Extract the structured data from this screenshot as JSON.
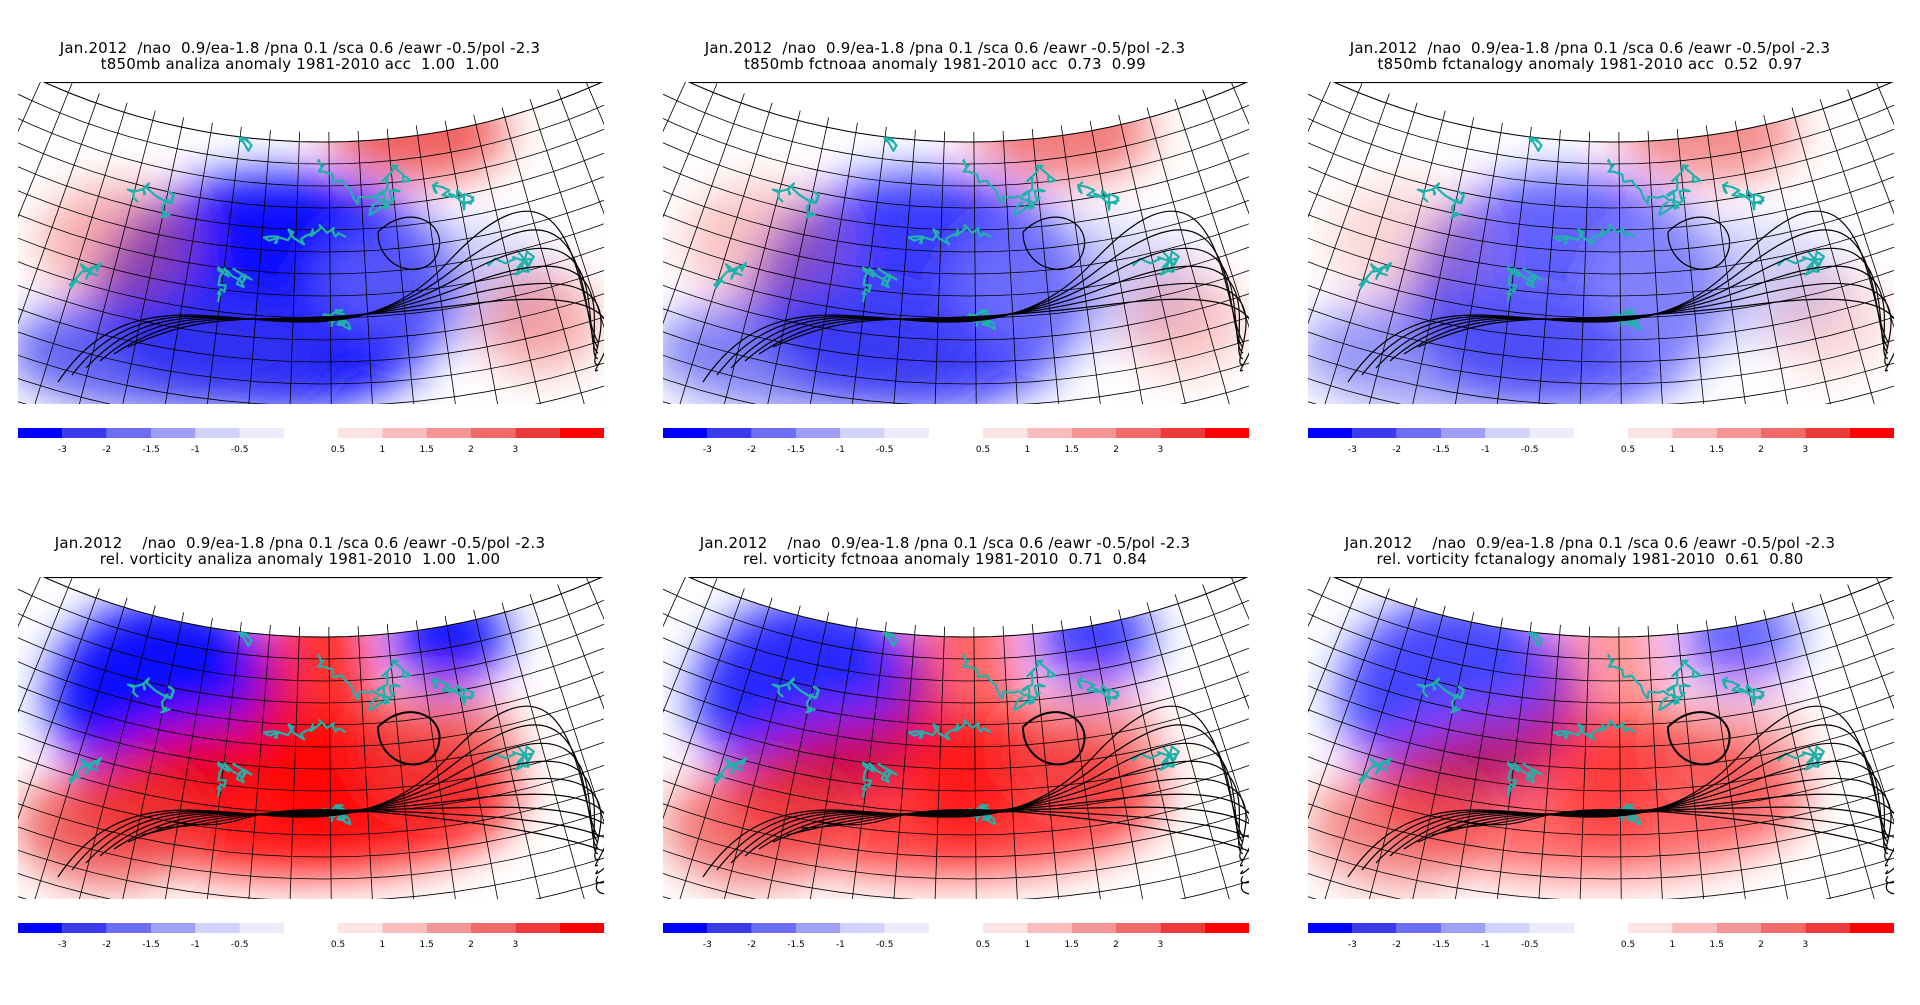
{
  "panels": [
    {
      "id": "t850-analiza",
      "title_line1": "Jan.2012  /nao  0.9/ea-1.8 /pna 0.1 /sca 0.6 /eawr -0.5/pol -2.3",
      "title_line2": "t850mb analiza anomaly 1981-2010 acc  1.00  1.00",
      "field": "t850",
      "strength": 1.0
    },
    {
      "id": "t850-fctnoaa",
      "title_line1": "Jan.2012  /nao  0.9/ea-1.8 /pna 0.1 /sca 0.6 /eawr -0.5/pol -2.3",
      "title_line2": "t850mb fctnoaa anomaly 1981-2010 acc  0.73  0.99",
      "field": "t850",
      "strength": 0.7
    },
    {
      "id": "t850-fctanalogy",
      "title_line1": "Jan.2012  /nao  0.9/ea-1.8 /pna 0.1 /sca 0.6 /eawr -0.5/pol -2.3",
      "title_line2": "t850mb fctanalogy anomaly 1981-2010 acc  0.52  0.97",
      "field": "t850",
      "strength": 0.45
    },
    {
      "id": "vort-analiza",
      "title_line1": "Jan.2012    /nao  0.9/ea-1.8 /pna 0.1 /sca 0.6 /eawr -0.5/pol -2.3",
      "title_line2": "rel. vorticity analiza anomaly 1981-2010  1.00  1.00",
      "field": "vort",
      "strength": 1.0
    },
    {
      "id": "vort-fctnoaa",
      "title_line1": "Jan.2012    /nao  0.9/ea-1.8 /pna 0.1 /sca 0.6 /eawr -0.5/pol -2.3",
      "title_line2": "rel. vorticity fctnoaa anomaly 1981-2010  0.71  0.84",
      "field": "vort",
      "strength": 0.75
    },
    {
      "id": "vort-fctanalogy",
      "title_line1": "Jan.2012    /nao  0.9/ea-1.8 /pna 0.1 /sca 0.6 /eawr -0.5/pol -2.3",
      "title_line2": "rel. vorticity fctanalogy anomaly 1981-2010  0.61  0.80",
      "field": "vort",
      "strength": 0.5
    }
  ],
  "colorbar": {
    "negative_labels": [
      "-3",
      "-2",
      "-1.5",
      "-1",
      "-0.5"
    ],
    "positive_labels": [
      "0.5",
      "1",
      "1.5",
      "2",
      "3"
    ],
    "negative_colors": [
      "#0000ff",
      "#3a3af0",
      "#6e6ef5",
      "#9f9ff8",
      "#d2d2fb",
      "#ececfd"
    ],
    "positive_colors": [
      "#fde4e4",
      "#f9bcbc",
      "#f59494",
      "#f06a6a",
      "#ec3a3a",
      "#ff0000"
    ]
  },
  "colors": {
    "coastline": "#20b2aa",
    "grid": "#000000",
    "contour": "#000000"
  }
}
